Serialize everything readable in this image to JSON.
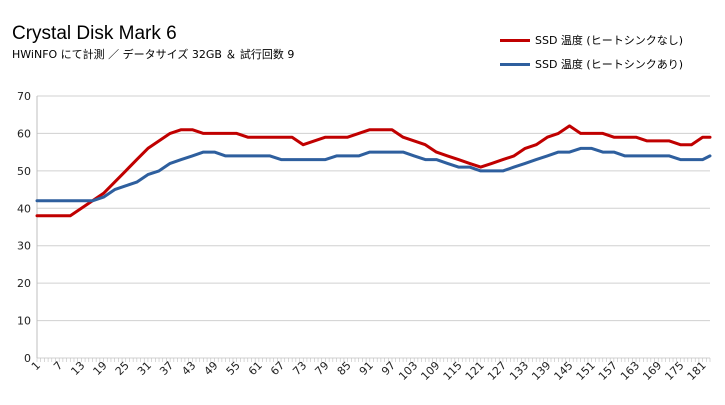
{
  "chart_data": {
    "type": "line",
    "title": "Crystal Disk Mark 6",
    "subtitle": "HWiNFO にて計測 ／ データサイズ 32GB ＆ 試行回数 9",
    "xlabel": "",
    "ylabel": "",
    "ylim": [
      0,
      70
    ],
    "yticks": [
      0,
      10,
      20,
      30,
      40,
      50,
      60,
      70
    ],
    "xticks": [
      1,
      7,
      13,
      19,
      25,
      31,
      37,
      43,
      49,
      55,
      61,
      67,
      73,
      79,
      85,
      91,
      97,
      103,
      109,
      115,
      121,
      127,
      133,
      139,
      145,
      151,
      157,
      163,
      169,
      175,
      181
    ],
    "xrange": [
      1,
      183
    ],
    "grid": "horizontal",
    "legend_position": "top-right",
    "x_keypoints": [
      1,
      10,
      13,
      16,
      19,
      22,
      25,
      28,
      31,
      34,
      37,
      40,
      43,
      46,
      49,
      52,
      55,
      58,
      61,
      64,
      67,
      70,
      73,
      76,
      79,
      82,
      85,
      88,
      91,
      94,
      97,
      100,
      103,
      106,
      109,
      112,
      115,
      118,
      121,
      124,
      127,
      130,
      133,
      136,
      139,
      142,
      145,
      148,
      151,
      154,
      157,
      160,
      163,
      166,
      169,
      172,
      175,
      178,
      181,
      183
    ],
    "series": [
      {
        "name": "SSD 温度 (ヒートシンクなし)",
        "color": "#c00000",
        "values": [
          38,
          38,
          40,
          42,
          44,
          47,
          50,
          53,
          56,
          58,
          60,
          61,
          61,
          60,
          60,
          60,
          60,
          59,
          59,
          59,
          59,
          59,
          57,
          58,
          59,
          59,
          59,
          60,
          61,
          61,
          61,
          59,
          58,
          57,
          55,
          54,
          53,
          52,
          51,
          52,
          53,
          54,
          56,
          57,
          59,
          60,
          62,
          60,
          60,
          60,
          59,
          59,
          59,
          58,
          58,
          58,
          57,
          57,
          59,
          59
        ]
      },
      {
        "name": "SSD 温度 (ヒートシンクあり)",
        "color": "#2e5f9e",
        "values": [
          42,
          42,
          42,
          42,
          43,
          45,
          46,
          47,
          49,
          50,
          52,
          53,
          54,
          55,
          55,
          54,
          54,
          54,
          54,
          54,
          53,
          53,
          53,
          53,
          53,
          54,
          54,
          54,
          55,
          55,
          55,
          55,
          54,
          53,
          53,
          52,
          51,
          51,
          50,
          50,
          50,
          51,
          52,
          53,
          54,
          55,
          55,
          56,
          56,
          55,
          55,
          54,
          54,
          54,
          54,
          54,
          53,
          53,
          53,
          54
        ]
      }
    ]
  }
}
